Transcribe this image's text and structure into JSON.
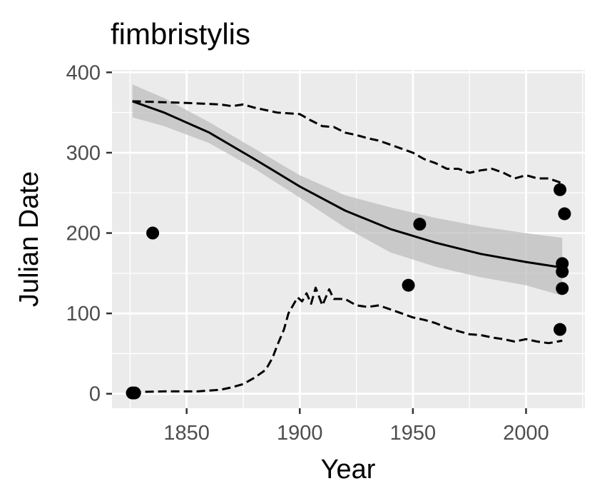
{
  "chart_data": {
    "type": "scatter",
    "title": "fimbristylis",
    "xlabel": "Year",
    "ylabel": "Julian Date",
    "xlim": [
      1817,
      2026
    ],
    "ylim": [
      -18,
      403
    ],
    "xticks": [
      1850,
      1900,
      1950,
      2000
    ],
    "yticks": [
      0,
      100,
      200,
      300,
      400
    ],
    "xtick_labels": [
      "1850",
      "1900",
      "1950",
      "2000"
    ],
    "ytick_labels": [
      "0",
      "100",
      "200",
      "300",
      "400"
    ],
    "grid": true,
    "legend": "none",
    "colors": {
      "panel": "#ebebeb",
      "grid": "#ffffff",
      "points": "#000000",
      "ribbon": "#bdbdbd"
    },
    "points": [
      {
        "x": 1826,
        "y": 1
      },
      {
        "x": 1827,
        "y": 1
      },
      {
        "x": 1835,
        "y": 200
      },
      {
        "x": 1948,
        "y": 135
      },
      {
        "x": 1953,
        "y": 211
      },
      {
        "x": 2015,
        "y": 254
      },
      {
        "x": 2017,
        "y": 224
      },
      {
        "x": 2016,
        "y": 162
      },
      {
        "x": 2016,
        "y": 152
      },
      {
        "x": 2016,
        "y": 131
      },
      {
        "x": 2015,
        "y": 80
      }
    ],
    "series": [
      {
        "kind": "smooth",
        "x": [
          1826,
          1840,
          1860,
          1880,
          1900,
          1920,
          1940,
          1960,
          1980,
          2000,
          2016
        ],
        "y": [
          364,
          350,
          325,
          292,
          258,
          228,
          205,
          188,
          174,
          164,
          157
        ],
        "lower": [
          344,
          333,
          312,
          280,
          244,
          207,
          176,
          158,
          145,
          135,
          122
        ],
        "upper": [
          385,
          368,
          338,
          305,
          272,
          247,
          232,
          219,
          208,
          200,
          194
        ]
      },
      {
        "kind": "upper-dashed",
        "x": [
          1826,
          1850,
          1865,
          1870,
          1875,
          1880,
          1890,
          1900,
          1905,
          1910,
          1915,
          1920,
          1925,
          1930,
          1935,
          1940,
          1945,
          1950,
          1955,
          1960,
          1965,
          1970,
          1975,
          1980,
          1985,
          1990,
          1995,
          2000,
          2005,
          2010,
          2016
        ],
        "y": [
          364,
          362,
          360,
          358,
          360,
          356,
          350,
          348,
          340,
          333,
          332,
          325,
          322,
          318,
          315,
          310,
          305,
          300,
          292,
          287,
          280,
          280,
          275,
          278,
          280,
          275,
          268,
          272,
          268,
          268,
          262
        ]
      },
      {
        "kind": "lower-dashed",
        "x": [
          1826,
          1840,
          1855,
          1865,
          1870,
          1875,
          1880,
          1885,
          1888,
          1890,
          1893,
          1895,
          1897,
          1899,
          1901,
          1903,
          1905,
          1907,
          1910,
          1913,
          1915,
          1920,
          1925,
          1930,
          1935,
          1940,
          1945,
          1950,
          1955,
          1960,
          1965,
          1970,
          1975,
          1980,
          1985,
          1990,
          1995,
          2000,
          2005,
          2010,
          2016
        ],
        "y": [
          2,
          3,
          3,
          5,
          8,
          12,
          20,
          30,
          45,
          60,
          80,
          100,
          110,
          120,
          115,
          125,
          112,
          132,
          110,
          130,
          118,
          118,
          110,
          108,
          110,
          105,
          100,
          95,
          92,
          88,
          82,
          78,
          74,
          73,
          70,
          68,
          65,
          68,
          65,
          63,
          66
        ]
      }
    ]
  }
}
